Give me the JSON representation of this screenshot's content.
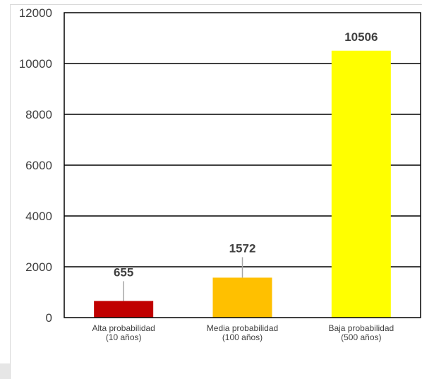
{
  "chart_data": {
    "type": "bar",
    "title": "",
    "xlabel": "",
    "ylabel": "",
    "ylim": [
      0,
      12000
    ],
    "yticks": [
      0,
      2000,
      4000,
      6000,
      8000,
      10000,
      12000
    ],
    "grid": true,
    "legend": "none",
    "categories": [
      [
        "Alta probabilidad",
        "(10 años)"
      ],
      [
        "Media probabilidad",
        "(100 años)"
      ],
      [
        "Baja probabilidad",
        "(500 años)"
      ]
    ],
    "values": [
      655,
      1572,
      10506
    ],
    "data_labels": [
      "655",
      "1572",
      "10506"
    ],
    "colors": [
      "#c00000",
      "#ffc000",
      "#ffff00"
    ]
  }
}
